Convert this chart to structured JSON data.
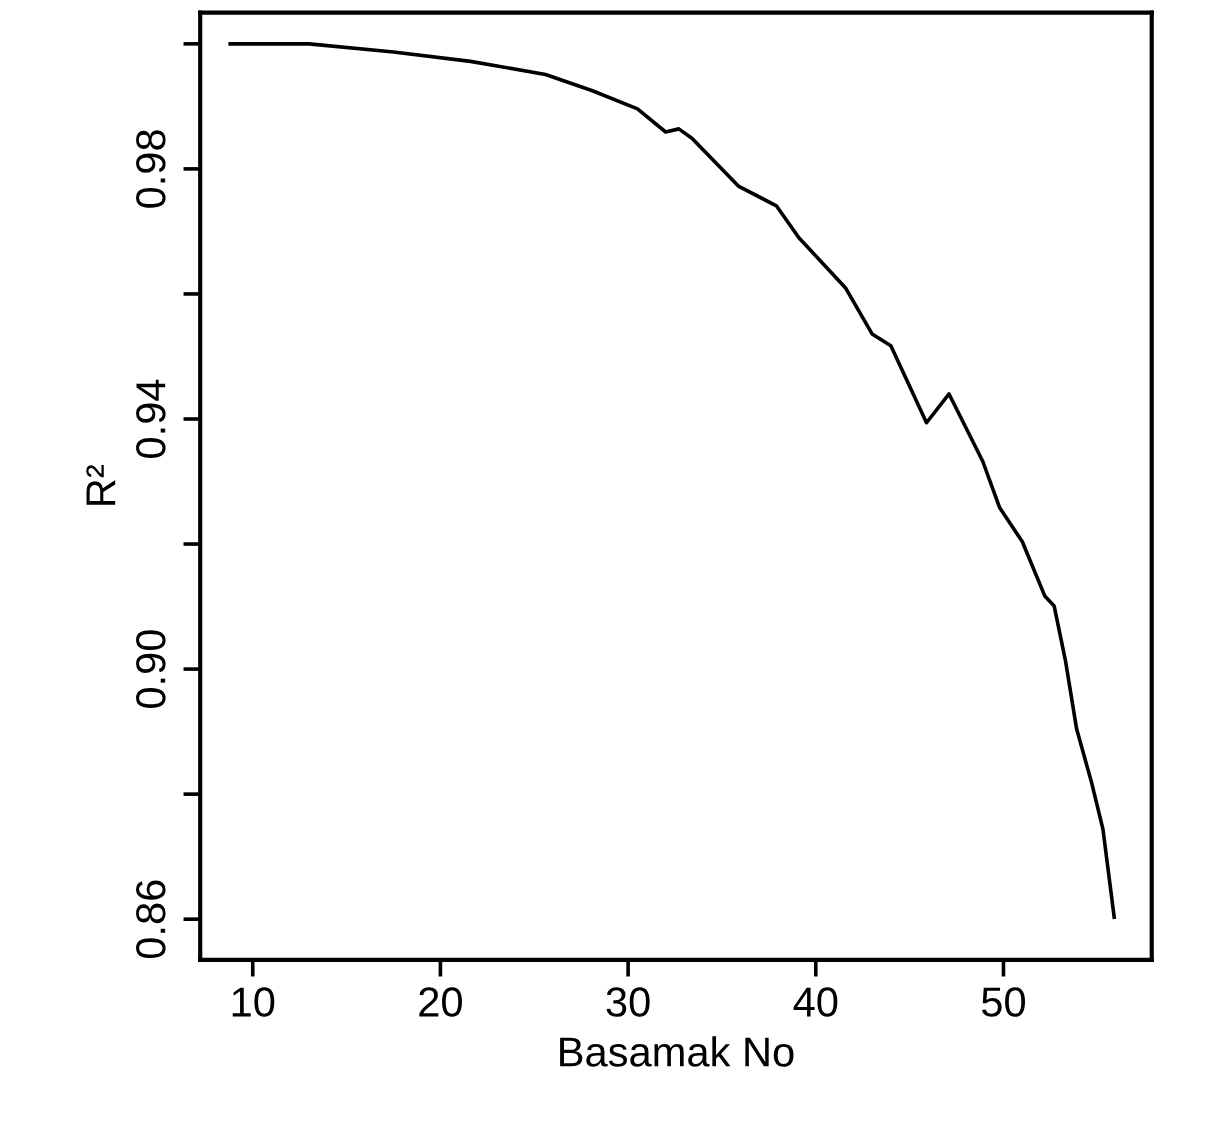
{
  "chart_data": {
    "type": "line",
    "xlabel": "Basamak No",
    "ylabel": "R²",
    "x": [
      8.8,
      13.0,
      17.5,
      21.6,
      25.6,
      28.1,
      30.5,
      32.0,
      32.7,
      33.4,
      35.9,
      37.9,
      39.1,
      41.6,
      43.0,
      44.0,
      45.9,
      47.1,
      48.9,
      49.8,
      51.0,
      52.2,
      52.7,
      53.3,
      53.9,
      54.7,
      55.3,
      55.9
    ],
    "series": [
      {
        "color": "#000000",
        "values": [
          1.0,
          1.0,
          0.9987,
          0.9972,
          0.9951,
          0.9925,
          0.9896,
          0.9859,
          0.9864,
          0.9849,
          0.9772,
          0.9741,
          0.969,
          0.9609,
          0.9536,
          0.9517,
          0.9394,
          0.944,
          0.9332,
          0.9258,
          0.9204,
          0.9117,
          0.9101,
          0.9014,
          0.8904,
          0.8818,
          0.8744,
          0.8603
        ]
      }
    ],
    "xlim": [
      7.2,
      57.9
    ],
    "ylim": [
      0.8535,
      1.005
    ],
    "xticks": [
      10,
      20,
      30,
      40,
      50
    ],
    "yticks": [
      {
        "value": 0.86,
        "label": "0.86"
      },
      {
        "value": 0.88,
        "label": null
      },
      {
        "value": 0.9,
        "label": "0.90"
      },
      {
        "value": 0.92,
        "label": null
      },
      {
        "value": 0.94,
        "label": "0.94"
      },
      {
        "value": 0.96,
        "label": null
      },
      {
        "value": 0.98,
        "label": "0.98"
      },
      {
        "value": 1.0,
        "label": null
      }
    ],
    "grid": false,
    "marker": "none",
    "line_style": "solid"
  }
}
